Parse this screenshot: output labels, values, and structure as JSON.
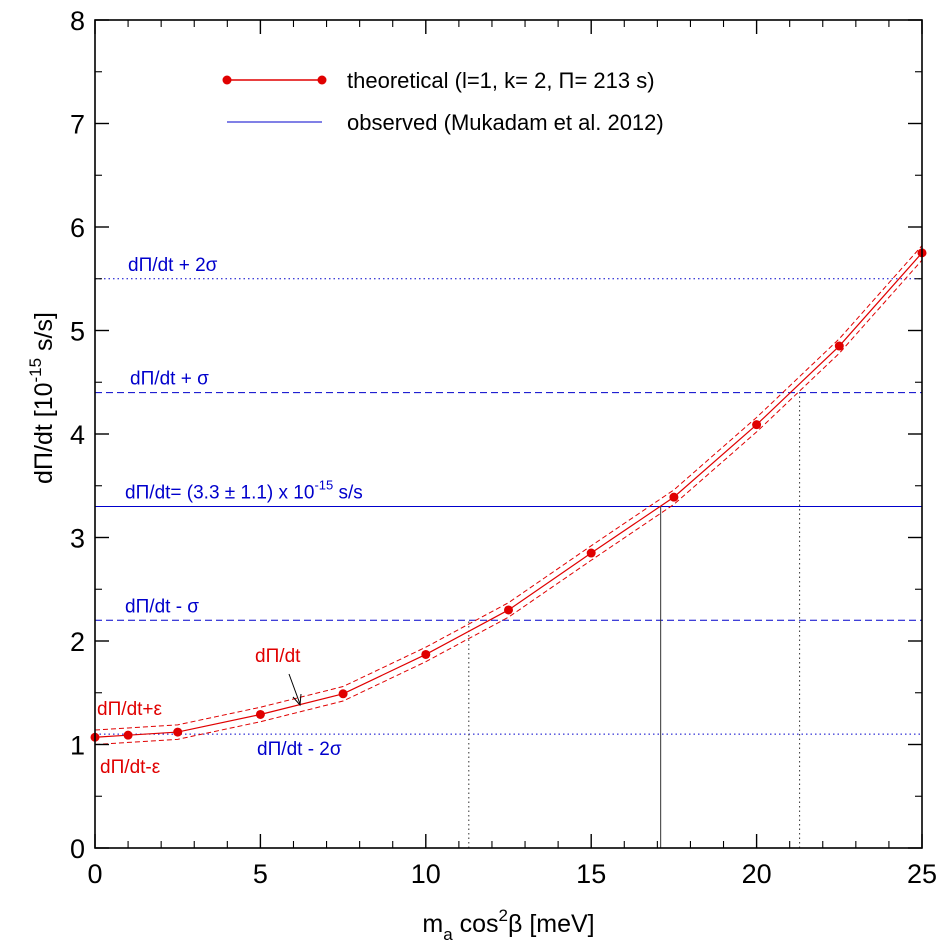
{
  "chart_data": {
    "type": "line",
    "xlabel_main": "m",
    "xlabel_sub": "a",
    "xlabel_mid": " cos",
    "xlabel_sup": "2",
    "xlabel_end": "β [meV]",
    "ylabel_main": "dΠ/dt  [10",
    "ylabel_sup": "-15",
    "ylabel_end": " s/s]",
    "xlim": [
      0,
      25
    ],
    "ylim": [
      0,
      8
    ],
    "x_ticks": [
      0,
      5,
      10,
      15,
      20,
      25
    ],
    "y_ticks": [
      0,
      1,
      2,
      3,
      4,
      5,
      6,
      7,
      8
    ],
    "x_tick_labels": [
      "0",
      "5",
      "10",
      "15",
      "20",
      "25"
    ],
    "y_tick_labels": [
      "0",
      "1",
      "2",
      "3",
      "4",
      "5",
      "6",
      "7",
      "8"
    ],
    "legend": [
      {
        "label": "theoretical (l=1, k= 2, Π= 213 s)",
        "color": "#e00000",
        "marker": "circle"
      },
      {
        "label": "observed (Mukadam et al. 2012)",
        "color": "#0000cc",
        "marker": "none"
      }
    ],
    "legend_position": "top-center",
    "series": [
      {
        "name": "theoretical (l=1, k= 2, Π= 213 s)",
        "color": "#e00000",
        "x": [
          0,
          1,
          2.5,
          5,
          7.5,
          10,
          12.5,
          15,
          17.5,
          20,
          22.5,
          25
        ],
        "y": [
          1.07,
          1.09,
          1.12,
          1.29,
          1.49,
          1.87,
          2.3,
          2.85,
          3.39,
          4.09,
          4.85,
          5.75
        ]
      }
    ],
    "error_band": {
      "plus_offset": 0.07,
      "minus_offset": 0.07,
      "color": "#e00000",
      "style": "dashed"
    },
    "observed": {
      "value": 3.3,
      "sigma": 1.1,
      "lines": [
        {
          "y": 5.5,
          "style": "dotted",
          "label": "dΠ/dt + 2σ"
        },
        {
          "y": 4.4,
          "style": "dashed",
          "label": "dΠ/dt + σ"
        },
        {
          "y": 3.3,
          "style": "solid",
          "label": "dΠ/dt= (3.3 ± 1.1) x 10",
          "label_sup": "-15",
          "label_end": " s/s"
        },
        {
          "y": 2.2,
          "style": "dashed",
          "label": "dΠ/dt - σ"
        },
        {
          "y": 1.1,
          "style": "dotted",
          "label": "dΠ/dt - 2σ"
        }
      ],
      "color": "#0000cc"
    },
    "vertical_lines": [
      {
        "x": 11.3,
        "style": "dotted"
      },
      {
        "x": 17.1,
        "style": "solid"
      },
      {
        "x": 21.3,
        "style": "dotted"
      }
    ],
    "annotations": {
      "band_upper": "dΠ/dt+ε",
      "band_lower": "dΠ/dt-ε",
      "center_line": "dΠ/dt"
    },
    "grid": false
  }
}
